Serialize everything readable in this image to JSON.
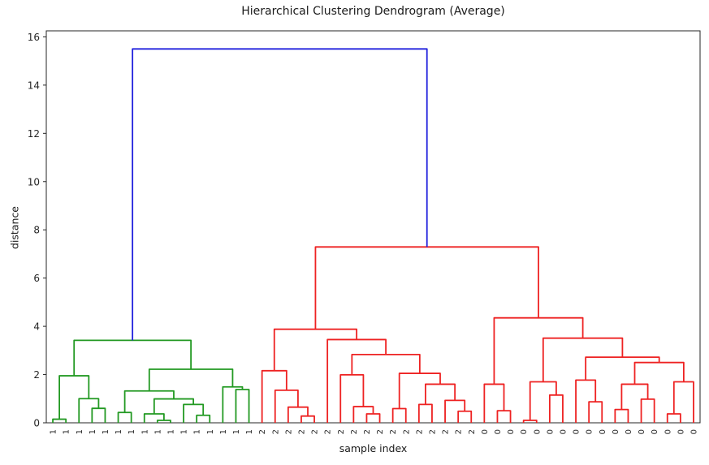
{
  "chart_data": {
    "type": "dendrogram",
    "title": "Hierarchical Clustering Dendrogram (Average)",
    "xlabel": "sample index",
    "ylabel": "distance",
    "ylim": [
      0,
      16.25
    ],
    "yticks": [
      0,
      2,
      4,
      6,
      8,
      10,
      12,
      14,
      16
    ],
    "grid": false,
    "legend": null,
    "n_leaves": 50,
    "leaf_labels": [
      "1",
      "1",
      "1",
      "1",
      "1",
      "1",
      "1",
      "1",
      "1",
      "1",
      "1",
      "1",
      "1",
      "1",
      "1",
      "1",
      "2",
      "2",
      "2",
      "2",
      "2",
      "2",
      "2",
      "2",
      "2",
      "2",
      "2",
      "2",
      "2",
      "2",
      "2",
      "2",
      "2",
      "0",
      "0",
      "0",
      "0",
      "0",
      "0",
      "0",
      "0",
      "0",
      "0",
      "0",
      "0",
      "0",
      "0",
      "0",
      "0",
      "0"
    ],
    "colors": {
      "frame": "#262626",
      "text": "#262626",
      "background": "#ffffff"
    },
    "color_map": {
      "g": "#229922",
      "r": "#ee2222",
      "b": "#2222dd"
    },
    "links_note": "each link = [left_node_id, right_node_id, merge_distance, color]; leaf ids 0-49, merged node ids 50+ in array order",
    "links": [
      [
        0,
        1,
        0.15,
        "g"
      ],
      [
        3,
        4,
        0.6,
        "g"
      ],
      [
        2,
        51,
        1.0,
        "g"
      ],
      [
        50,
        52,
        1.95,
        "g"
      ],
      [
        8,
        9,
        0.1,
        "g"
      ],
      [
        7,
        54,
        0.37,
        "g"
      ],
      [
        11,
        12,
        0.31,
        "g"
      ],
      [
        10,
        56,
        0.76,
        "g"
      ],
      [
        55,
        57,
        0.99,
        "g"
      ],
      [
        5,
        6,
        0.43,
        "g"
      ],
      [
        59,
        58,
        1.32,
        "g"
      ],
      [
        14,
        15,
        1.38,
        "g"
      ],
      [
        13,
        61,
        1.49,
        "g"
      ],
      [
        60,
        62,
        2.22,
        "g"
      ],
      [
        53,
        63,
        3.42,
        "g"
      ],
      [
        19,
        20,
        0.28,
        "r"
      ],
      [
        18,
        65,
        0.65,
        "r"
      ],
      [
        17,
        66,
        1.35,
        "r"
      ],
      [
        16,
        67,
        2.16,
        "r"
      ],
      [
        24,
        25,
        0.37,
        "r"
      ],
      [
        23,
        69,
        0.67,
        "r"
      ],
      [
        22,
        70,
        1.99,
        "r"
      ],
      [
        26,
        27,
        0.59,
        "r"
      ],
      [
        28,
        29,
        0.76,
        "r"
      ],
      [
        31,
        32,
        0.48,
        "r"
      ],
      [
        30,
        74,
        0.93,
        "r"
      ],
      [
        73,
        75,
        1.6,
        "r"
      ],
      [
        72,
        76,
        2.05,
        "r"
      ],
      [
        71,
        77,
        2.83,
        "r"
      ],
      [
        21,
        78,
        3.45,
        "r"
      ],
      [
        68,
        79,
        3.88,
        "r"
      ],
      [
        34,
        35,
        0.5,
        "r"
      ],
      [
        33,
        81,
        1.6,
        "r"
      ],
      [
        36,
        37,
        0.1,
        "r"
      ],
      [
        38,
        39,
        1.15,
        "r"
      ],
      [
        83,
        84,
        1.7,
        "r"
      ],
      [
        41,
        42,
        0.87,
        "r"
      ],
      [
        40,
        86,
        1.77,
        "r"
      ],
      [
        43,
        44,
        0.55,
        "r"
      ],
      [
        45,
        46,
        0.98,
        "r"
      ],
      [
        88,
        89,
        1.6,
        "r"
      ],
      [
        47,
        48,
        0.37,
        "r"
      ],
      [
        91,
        49,
        1.7,
        "r"
      ],
      [
        90,
        92,
        2.5,
        "r"
      ],
      [
        87,
        93,
        2.72,
        "r"
      ],
      [
        85,
        94,
        3.51,
        "r"
      ],
      [
        82,
        95,
        4.35,
        "r"
      ],
      [
        80,
        96,
        7.29,
        "r"
      ],
      [
        64,
        97,
        15.5,
        "b"
      ]
    ]
  }
}
